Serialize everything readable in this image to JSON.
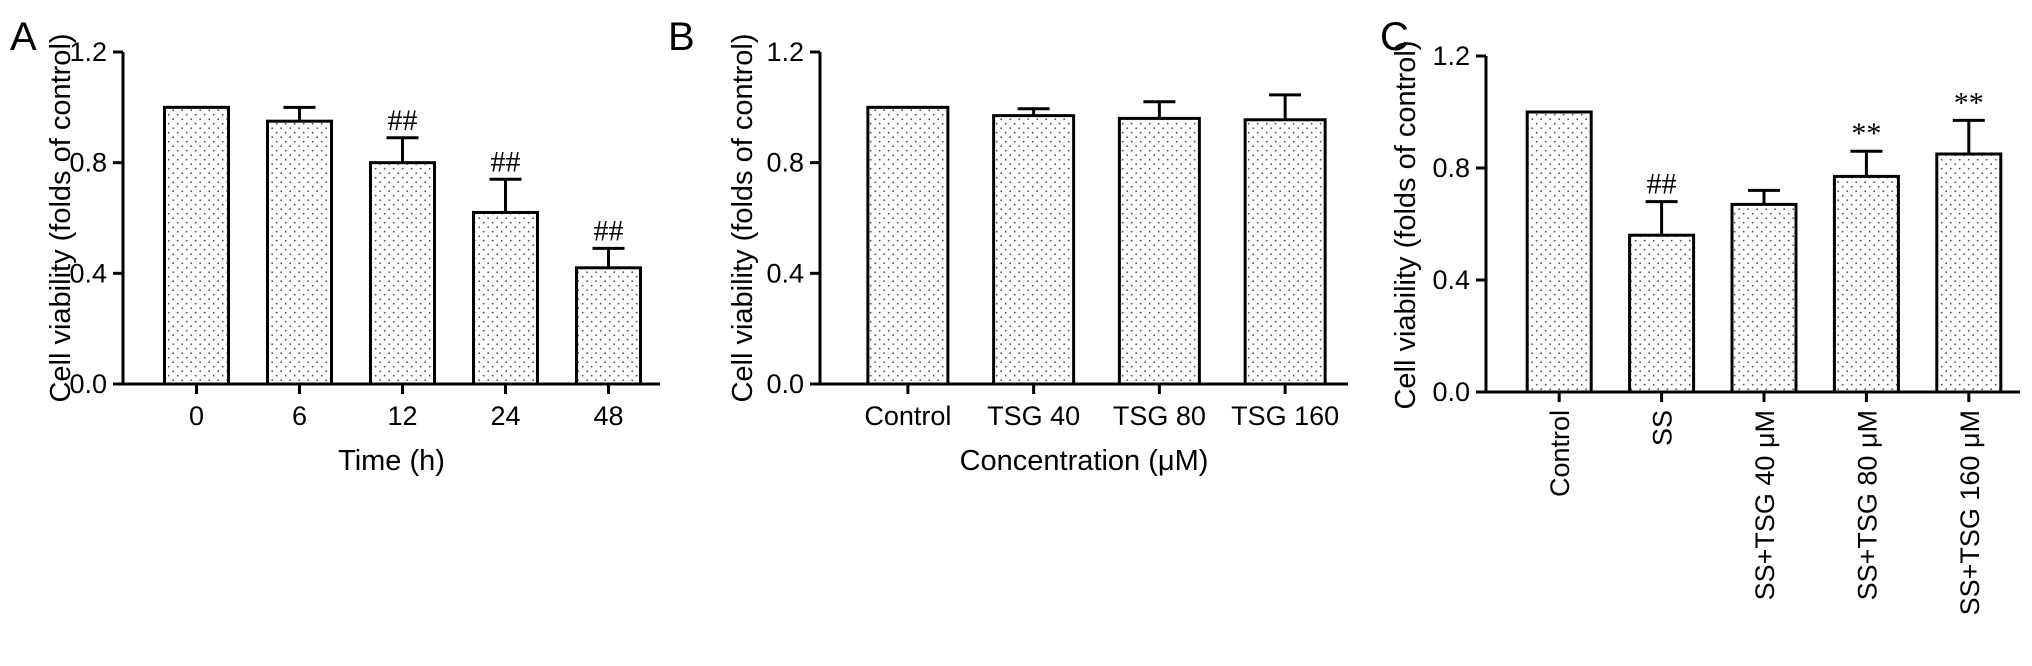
{
  "chart_data": [
    {
      "type": "bar",
      "panel": "A",
      "categories": [
        "0",
        "6",
        "12",
        "24",
        "48"
      ],
      "values": [
        1.0,
        0.95,
        0.8,
        0.62,
        0.42
      ],
      "errors": [
        0.0,
        0.05,
        0.09,
        0.12,
        0.07
      ],
      "annotations": [
        "",
        "",
        "##",
        "##",
        "##"
      ],
      "xlabel": "Time (h)",
      "ylabel": "Cell viability (folds of control)",
      "yticks": [
        "0.0",
        "0.4",
        "0.8",
        "1.2"
      ],
      "ylim": [
        0,
        1.2
      ],
      "grid": false,
      "tick_rotation": 0
    },
    {
      "type": "bar",
      "panel": "B",
      "categories": [
        "Control",
        "TSG 40",
        "TSG 80",
        "TSG 160"
      ],
      "values": [
        1.0,
        0.97,
        0.96,
        0.955
      ],
      "errors": [
        0.0,
        0.025,
        0.06,
        0.09
      ],
      "annotations": [
        "",
        "",
        "",
        ""
      ],
      "xlabel": "Concentration (μM)",
      "ylabel": "Cell viability (folds of control)",
      "yticks": [
        "0.0",
        "0.4",
        "0.8",
        "1.2"
      ],
      "ylim": [
        0,
        1.2
      ],
      "grid": false,
      "tick_rotation": 0
    },
    {
      "type": "bar",
      "panel": "C",
      "categories": [
        "Control",
        "SS",
        "SS+TSG 40 μM",
        "SS+TSG 80 μM",
        "SS+TSG 160 μM"
      ],
      "values": [
        1.0,
        0.56,
        0.67,
        0.77,
        0.85
      ],
      "errors": [
        0.0,
        0.12,
        0.05,
        0.09,
        0.12
      ],
      "annotations": [
        "",
        "##",
        "",
        "**",
        "**"
      ],
      "xlabel": "",
      "ylabel": "Cell viability (folds of control)",
      "yticks": [
        "0.0",
        "0.4",
        "0.8",
        "1.2"
      ],
      "ylim": [
        0,
        1.2
      ],
      "grid": false,
      "tick_rotation": -90
    }
  ]
}
